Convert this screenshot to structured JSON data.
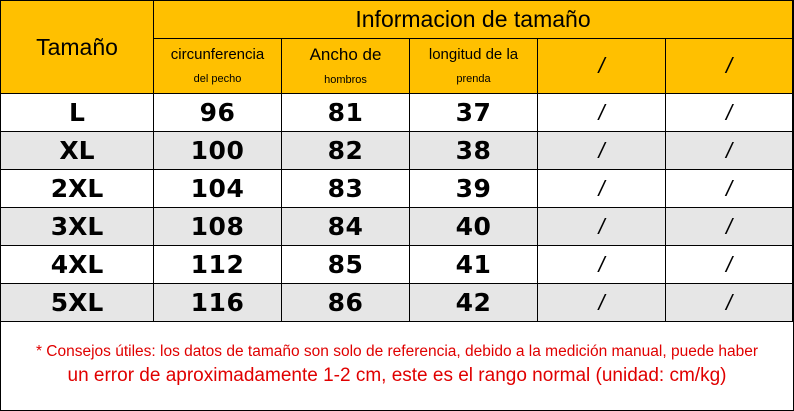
{
  "header": {
    "size_label": "Tamaño",
    "title": "Informacion de tamaño",
    "columns": [
      {
        "line1": "circunferencia",
        "line2": "del pecho"
      },
      {
        "line1": "Ancho de",
        "line2": "hombros"
      },
      {
        "line1": "longitud de la",
        "line2": "prenda"
      },
      {
        "line1": "/",
        "line2": ""
      },
      {
        "line1": "/",
        "line2": ""
      }
    ]
  },
  "rows": [
    {
      "size": "L",
      "chest": "96",
      "shoulder": "81",
      "length": "37",
      "c4": "/",
      "c5": "/"
    },
    {
      "size": "XL",
      "chest": "100",
      "shoulder": "82",
      "length": "38",
      "c4": "/",
      "c5": "/"
    },
    {
      "size": "2XL",
      "chest": "104",
      "shoulder": "83",
      "length": "39",
      "c4": "/",
      "c5": "/"
    },
    {
      "size": "3XL",
      "chest": "108",
      "shoulder": "84",
      "length": "40",
      "c4": "/",
      "c5": "/"
    },
    {
      "size": "4XL",
      "chest": "112",
      "shoulder": "85",
      "length": "41",
      "c4": "/",
      "c5": "/"
    },
    {
      "size": "5XL",
      "chest": "116",
      "shoulder": "86",
      "length": "42",
      "c4": "/",
      "c5": "/"
    }
  ],
  "note": {
    "line1": "* Consejos útiles: los datos de tamaño son solo de referencia, debido a la medición manual, puede haber",
    "line2": "un error de aproximadamente 1-2 cm, este es el rango normal (unidad: cm/kg)"
  },
  "colors": {
    "header": "#ffc000",
    "stripe": "#e6e6e6",
    "note_text": "#e00000"
  }
}
